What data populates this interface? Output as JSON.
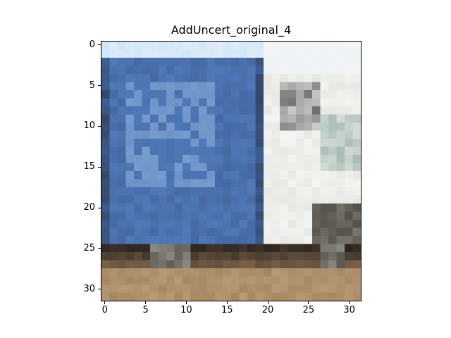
{
  "figure": {
    "title": "AddUncert_original_4",
    "x_ticks": [
      "0",
      "5",
      "10",
      "15",
      "20",
      "25",
      "30"
    ],
    "y_ticks": [
      "0",
      "5",
      "10",
      "15",
      "20",
      "25",
      "30"
    ]
  },
  "image": {
    "description_tag": "pixelated-photo-of-blue-box-truck",
    "grid_cols": 32,
    "grid_rows": 32,
    "palette": {
      "sky": "#cfe6f7",
      "haze": "#eef3f6",
      "cab_white": "#f4f4f2",
      "box_blue": "#4f79b8",
      "box_blue_light": "#7fa3d2",
      "box_blue_dark": "#3d5e95",
      "shadow_dark": "#2b2620",
      "wheel_gray": "#8c8a84",
      "ground": "#b89a76",
      "ground_dark": "#9a7a58"
    }
  }
}
